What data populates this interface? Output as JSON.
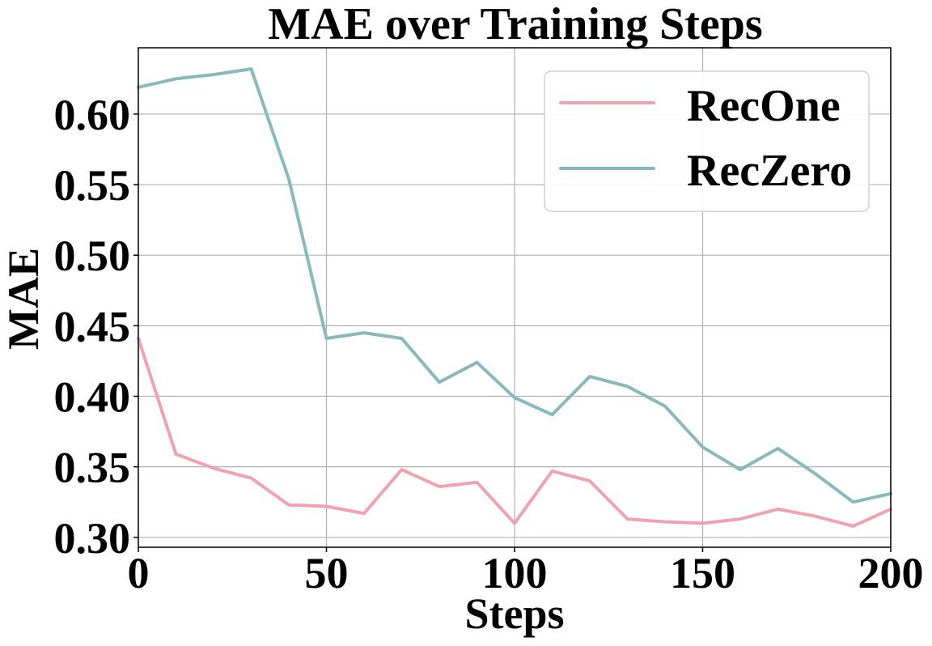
{
  "chart_data": {
    "type": "line",
    "title": "MAE over Training Steps",
    "xlabel": "Steps",
    "ylabel": "MAE",
    "xlim": [
      0,
      200
    ],
    "ylim": [
      0.293,
      0.647
    ],
    "xticks": [
      0,
      50,
      100,
      150,
      200
    ],
    "xtick_labels": [
      "0",
      "50",
      "100",
      "150",
      "200"
    ],
    "yticks": [
      0.3,
      0.35,
      0.4,
      0.45,
      0.5,
      0.55,
      0.6
    ],
    "ytick_labels": [
      "0.30",
      "0.35",
      "0.40",
      "0.45",
      "0.50",
      "0.55",
      "0.60"
    ],
    "grid": true,
    "legend_position": "top-right",
    "x": [
      0,
      10,
      20,
      30,
      40,
      50,
      60,
      70,
      80,
      90,
      100,
      110,
      120,
      130,
      140,
      150,
      160,
      170,
      180,
      190,
      200
    ],
    "series": [
      {
        "name": "RecOne",
        "color": "#f0a3ae",
        "values": [
          0.441,
          0.359,
          0.349,
          0.342,
          0.323,
          0.322,
          0.317,
          0.348,
          0.336,
          0.339,
          0.31,
          0.347,
          0.34,
          0.313,
          0.311,
          0.31,
          0.313,
          0.32,
          0.315,
          0.308,
          0.32
        ]
      },
      {
        "name": "RecZero",
        "color": "#88b9bb",
        "values": [
          0.619,
          0.625,
          0.628,
          0.632,
          0.554,
          0.441,
          0.445,
          0.441,
          0.41,
          0.424,
          0.399,
          0.387,
          0.414,
          0.407,
          0.393,
          0.364,
          0.348,
          0.363,
          0.345,
          0.325,
          0.331
        ]
      }
    ]
  }
}
